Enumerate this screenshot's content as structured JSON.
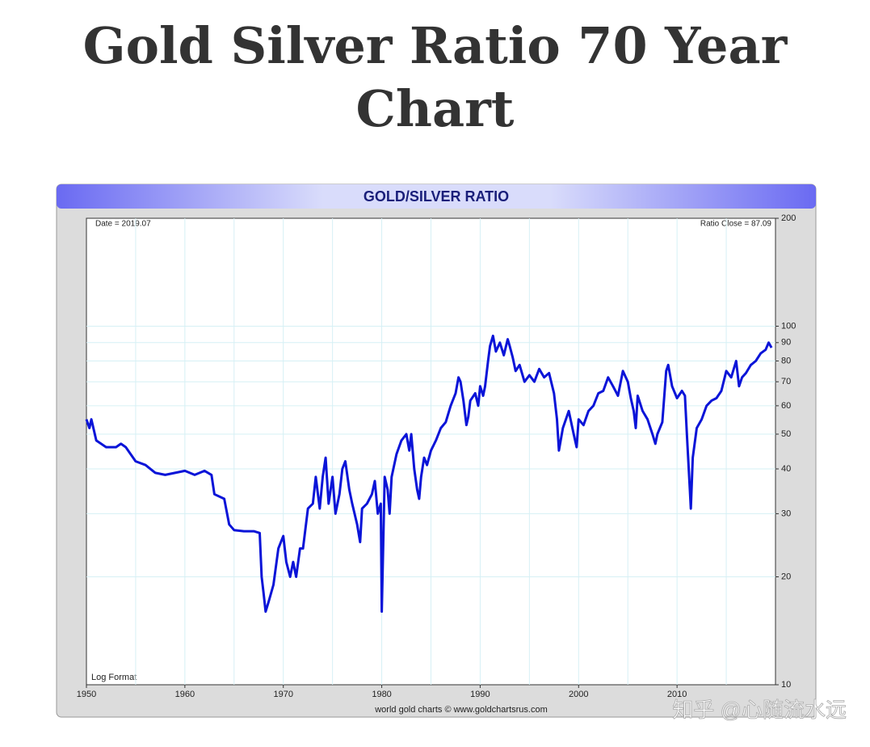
{
  "page_title": "Gold Silver Ratio 70 Year Chart",
  "chart_data": {
    "type": "line",
    "title": "GOLD/SILVER RATIO",
    "annotations": {
      "date": "Date = 2019.07",
      "close": "Ratio Close = 87.09",
      "format": "Log Format",
      "source": "world gold charts © www.goldchartsrus.com"
    },
    "log_scale": true,
    "grid": true,
    "xlim": [
      1950,
      2020
    ],
    "xticks": [
      1950,
      1960,
      1970,
      1980,
      1990,
      2000,
      2010
    ],
    "x_minor_grid": [
      1955,
      1965,
      1975,
      1985,
      1995,
      2005,
      2015
    ],
    "ylim": [
      10,
      200
    ],
    "yticks": [
      10,
      20,
      30,
      40,
      50,
      60,
      70,
      80,
      90,
      100,
      200
    ],
    "series": [
      {
        "name": "Gold/Silver Ratio",
        "color": "#0a14d8",
        "x": [
          1950.0,
          1950.3,
          1950.5,
          1951,
          1952,
          1953,
          1953.5,
          1954,
          1955,
          1956,
          1957,
          1958,
          1959,
          1960,
          1961,
          1962,
          1962.7,
          1963,
          1964,
          1964.5,
          1965,
          1966,
          1967,
          1967.6,
          1967.8,
          1968,
          1968.2,
          1968.5,
          1969,
          1969.5,
          1970,
          1970.3,
          1970.7,
          1971,
          1971.3,
          1971.7,
          1972,
          1972.5,
          1973,
          1973.3,
          1973.7,
          1974,
          1974.3,
          1974.6,
          1975,
          1975.3,
          1975.7,
          1976,
          1976.3,
          1976.7,
          1977,
          1977.5,
          1977.8,
          1978,
          1978.5,
          1979,
          1979.3,
          1979.6,
          1979.9,
          1980.0,
          1980.3,
          1980.6,
          1980.8,
          1981,
          1981.5,
          1982,
          1982.5,
          1982.8,
          1983,
          1983.3,
          1983.6,
          1983.8,
          1984,
          1984.3,
          1984.6,
          1985,
          1985.5,
          1986,
          1986.5,
          1987,
          1987.5,
          1987.8,
          1988,
          1988.3,
          1988.6,
          1988.8,
          1989,
          1989.5,
          1989.8,
          1990,
          1990.3,
          1990.5,
          1990.8,
          1991,
          1991.3,
          1991.6,
          1992,
          1992.4,
          1992.8,
          1993,
          1993.3,
          1993.6,
          1994,
          1994.5,
          1995,
          1995.5,
          1996,
          1996.5,
          1997,
          1997.5,
          1997.8,
          1998,
          1998.4,
          1999,
          1999.5,
          1999.8,
          2000,
          2000.5,
          2001,
          2001.5,
          2002,
          2002.5,
          2003,
          2003.5,
          2004,
          2004.5,
          2005,
          2005.3,
          2005.6,
          2005.8,
          2006,
          2006.5,
          2007,
          2007.5,
          2007.8,
          2008,
          2008.5,
          2008.9,
          2009.1,
          2009.5,
          2010,
          2010.5,
          2010.8,
          2011,
          2011.3,
          2011.4,
          2011.6,
          2012,
          2012.5,
          2013,
          2013.5,
          2014,
          2014.5,
          2015,
          2015.5,
          2016,
          2016.3,
          2016.6,
          2017,
          2017.5,
          2018,
          2018.5,
          2019,
          2019.3,
          2019.6
        ],
        "values": [
          55,
          52,
          55,
          48,
          46,
          46,
          47,
          46,
          42,
          41,
          39,
          38.5,
          39,
          39.5,
          38.5,
          39.5,
          38.5,
          34,
          33,
          28,
          27,
          26.8,
          26.8,
          26.5,
          20,
          18,
          16,
          17,
          19,
          24,
          26,
          22,
          20,
          22,
          20,
          24,
          24,
          31,
          32,
          38,
          31,
          38,
          43,
          32,
          38,
          30,
          34,
          40,
          42,
          35,
          32,
          28,
          25,
          31,
          32,
          34,
          37,
          30,
          32,
          16,
          38,
          35,
          30,
          38,
          44,
          48,
          50,
          45,
          50,
          40,
          35,
          33,
          38,
          43,
          41,
          45,
          48,
          52,
          54,
          60,
          65,
          72,
          70,
          62,
          53,
          56,
          62,
          65,
          60,
          68,
          64,
          68,
          80,
          88,
          94,
          85,
          90,
          83,
          92,
          88,
          82,
          75,
          78,
          70,
          73,
          70,
          76,
          72,
          74,
          65,
          55,
          45,
          52,
          58,
          50,
          46,
          55,
          53,
          58,
          60,
          65,
          66,
          72,
          68,
          64,
          75,
          70,
          63,
          58,
          52,
          64,
          58,
          55,
          50,
          47,
          50,
          54,
          75,
          78,
          68,
          63,
          66,
          64,
          50,
          35,
          31,
          43,
          52,
          55,
          60,
          62,
          63,
          66,
          75,
          72,
          80,
          68,
          72,
          74,
          78,
          80,
          84,
          86,
          90,
          87.09
        ]
      }
    ]
  },
  "watermark": "知乎 @心随流水远"
}
